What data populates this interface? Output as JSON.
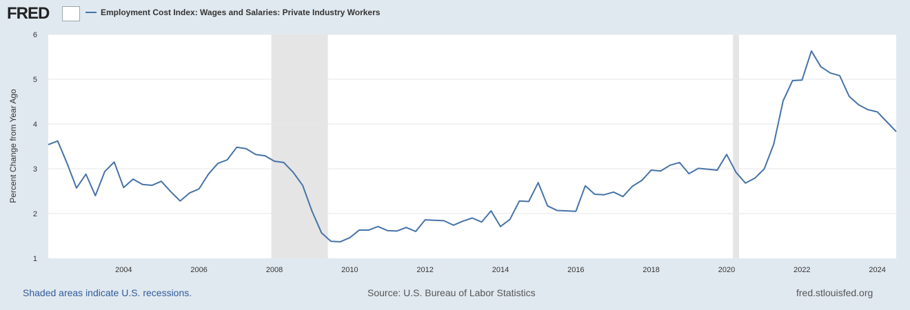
{
  "header": {
    "logo": "FRED"
  },
  "footer": {
    "note": "Shaded areas indicate U.S. recessions.",
    "source": "Source: U.S. Bureau of Labor Statistics",
    "site": "fred.stlouisfed.org"
  },
  "colors": {
    "line": "#4572a7",
    "recession": "#e5e5e5",
    "grid": "#e6e6e6"
  },
  "chart_data": {
    "type": "line",
    "title": "Employment Cost Index: Wages and Salaries: Private Industry Workers",
    "xlabel": "",
    "ylabel": "Percent Change from Year Ago",
    "ylim": [
      1,
      6
    ],
    "xlim": [
      2002.0,
      2024.5
    ],
    "yticks": [
      "1",
      "2",
      "3",
      "4",
      "5",
      "6"
    ],
    "xticks": [
      "2004",
      "2006",
      "2008",
      "2010",
      "2012",
      "2014",
      "2016",
      "2018",
      "2020",
      "2022",
      "2024"
    ],
    "grid": true,
    "legend": "top-left",
    "recessions": [
      [
        2007.92,
        2009.42
      ],
      [
        2020.17,
        2020.33
      ]
    ],
    "start": "2002-Q1",
    "frequency": "quarterly",
    "series": [
      {
        "name": "Employment Cost Index: Wages and Salaries: Private Industry Workers",
        "values": [
          3.54,
          3.62,
          3.12,
          2.57,
          2.88,
          2.4,
          2.94,
          3.15,
          2.58,
          2.77,
          2.65,
          2.63,
          2.72,
          2.49,
          2.28,
          2.46,
          2.55,
          2.88,
          3.12,
          3.2,
          3.48,
          3.45,
          3.32,
          3.29,
          3.17,
          3.14,
          2.92,
          2.63,
          2.05,
          1.57,
          1.38,
          1.37,
          1.46,
          1.63,
          1.63,
          1.71,
          1.62,
          1.61,
          1.69,
          1.6,
          1.86,
          1.85,
          1.84,
          1.74,
          1.83,
          1.9,
          1.81,
          2.06,
          1.71,
          1.87,
          2.28,
          2.27,
          2.69,
          2.17,
          2.07,
          2.06,
          2.05,
          2.62,
          2.43,
          2.42,
          2.48,
          2.38,
          2.61,
          2.74,
          2.97,
          2.95,
          3.08,
          3.14,
          2.89,
          3.01,
          2.99,
          2.97,
          3.32,
          2.92,
          2.68,
          2.79,
          3.0,
          3.55,
          4.52,
          4.97,
          4.98,
          5.63,
          5.28,
          5.14,
          5.08,
          4.62,
          4.43,
          4.32,
          4.27,
          4.05,
          3.83
        ]
      }
    ]
  }
}
